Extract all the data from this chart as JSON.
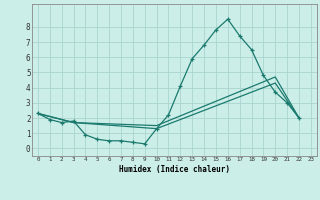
{
  "xlabel": "Humidex (Indice chaleur)",
  "bg_color": "#cceee8",
  "grid_color": "#aad4ce",
  "line_color": "#1a7a6e",
  "xlim": [
    -0.5,
    23.5
  ],
  "ylim": [
    -0.5,
    9.5
  ],
  "xticks": [
    0,
    1,
    2,
    3,
    4,
    5,
    6,
    7,
    8,
    9,
    10,
    11,
    12,
    13,
    14,
    15,
    16,
    17,
    18,
    19,
    20,
    21,
    22,
    23
  ],
  "yticks": [
    0,
    1,
    2,
    3,
    4,
    5,
    6,
    7,
    8
  ],
  "line1_x": [
    0,
    1,
    2,
    3,
    4,
    5,
    6,
    7,
    8,
    9,
    10,
    11,
    12,
    13,
    14,
    15,
    16,
    17,
    18,
    19,
    20,
    21,
    22
  ],
  "line1_y": [
    2.3,
    1.9,
    1.7,
    1.8,
    0.9,
    0.6,
    0.5,
    0.5,
    0.4,
    0.3,
    1.3,
    2.2,
    4.1,
    5.9,
    6.8,
    7.8,
    8.5,
    7.4,
    6.5,
    4.8,
    3.7,
    3.0,
    2.0
  ],
  "line2_x": [
    0,
    3,
    10,
    20,
    22
  ],
  "line2_y": [
    2.3,
    1.7,
    1.5,
    4.7,
    2.0
  ],
  "line3_x": [
    0,
    3,
    10,
    20,
    22
  ],
  "line3_y": [
    2.3,
    1.7,
    1.3,
    4.3,
    2.0
  ]
}
